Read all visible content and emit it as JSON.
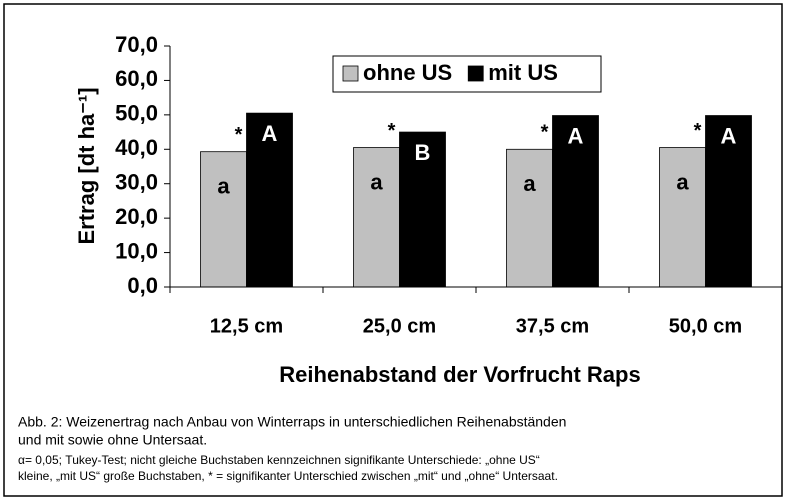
{
  "chart_data": {
    "type": "bar",
    "categories": [
      "12,5 cm",
      "25,0 cm",
      "37,5 cm",
      "50,0 cm"
    ],
    "series": [
      {
        "name": "ohne US",
        "color": "#c0c0c0",
        "values": [
          39.3,
          40.5,
          40.0,
          40.5
        ],
        "letters": [
          "a",
          "a",
          "a",
          "a"
        ],
        "marks": [
          "*",
          "*",
          "*",
          "*"
        ]
      },
      {
        "name": "mit US",
        "color": "#000000",
        "values": [
          50.5,
          45.0,
          49.8,
          49.8
        ],
        "letters": [
          "A",
          "B",
          "A",
          "A"
        ]
      }
    ],
    "ylim": [
      0,
      70
    ],
    "yticks": [
      {
        "value": 0,
        "label": "0,0"
      },
      {
        "value": 10,
        "label": "10,0"
      },
      {
        "value": 20,
        "label": "20,0"
      },
      {
        "value": 30,
        "label": "30,0"
      },
      {
        "value": 40,
        "label": "40,0"
      },
      {
        "value": 50,
        "label": "50,0"
      },
      {
        "value": 60,
        "label": "60,0"
      },
      {
        "value": 70,
        "label": "70,0"
      }
    ],
    "ylabel": "Ertrag [dt ha⁻¹]",
    "xlabel": "Reihenabstand der Vorfrucht Raps",
    "legend": "top",
    "caption": [
      "Abb. 2: Weizenertrag nach Anbau von Winterraps in unterschiedlichen Reihenabständen",
      "und mit sowie ohne Untersaat.",
      "α= 0,05; Tukey-Test; nicht gleiche Buchstaben kennzeichnen signifikante Unterschiede: „ohne US“",
      "kleine, „mit US“ große Buchstaben, * = signifikanter Unterschied zwischen „mit“ und „ohne“ Untersaat."
    ]
  }
}
